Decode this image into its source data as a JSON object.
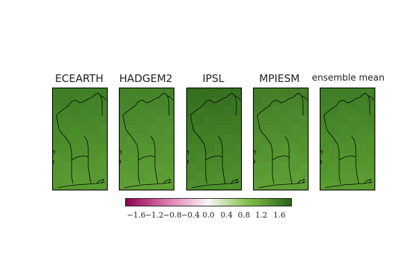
{
  "panels": [
    {
      "title": "ECEARTH"
    },
    {
      "title": "HADGEM2"
    },
    {
      "title": "IPSL"
    },
    {
      "title": "MPIESM"
    },
    {
      "title": "ensemble mean"
    }
  ],
  "colorbar": {
    "ticks": [
      "−1.6",
      "−1.2",
      "−0.8",
      "−0.4",
      "0.0",
      "0.4",
      "0.8",
      "1.2",
      "1.6"
    ],
    "colors": {
      "negative_end": "#8e0152",
      "negative_mid": "#de77ae",
      "neutral": "#f7f7f7",
      "positive_mid": "#7fbc41",
      "positive_end": "#276419"
    }
  },
  "panel_palette": {
    "ECEARTH": {
      "north": "#3f7e26",
      "south": "#5a9c32"
    },
    "HADGEM2": {
      "north": "#44832a",
      "south": "#5e9f35"
    },
    "IPSL": {
      "north": "#356f1f",
      "south": "#4f912d"
    },
    "MPIESM": {
      "north": "#447f28",
      "south": "#5fa036"
    },
    "ensemble mean": {
      "north": "#3f7e26",
      "south": "#5a9c32"
    }
  }
}
